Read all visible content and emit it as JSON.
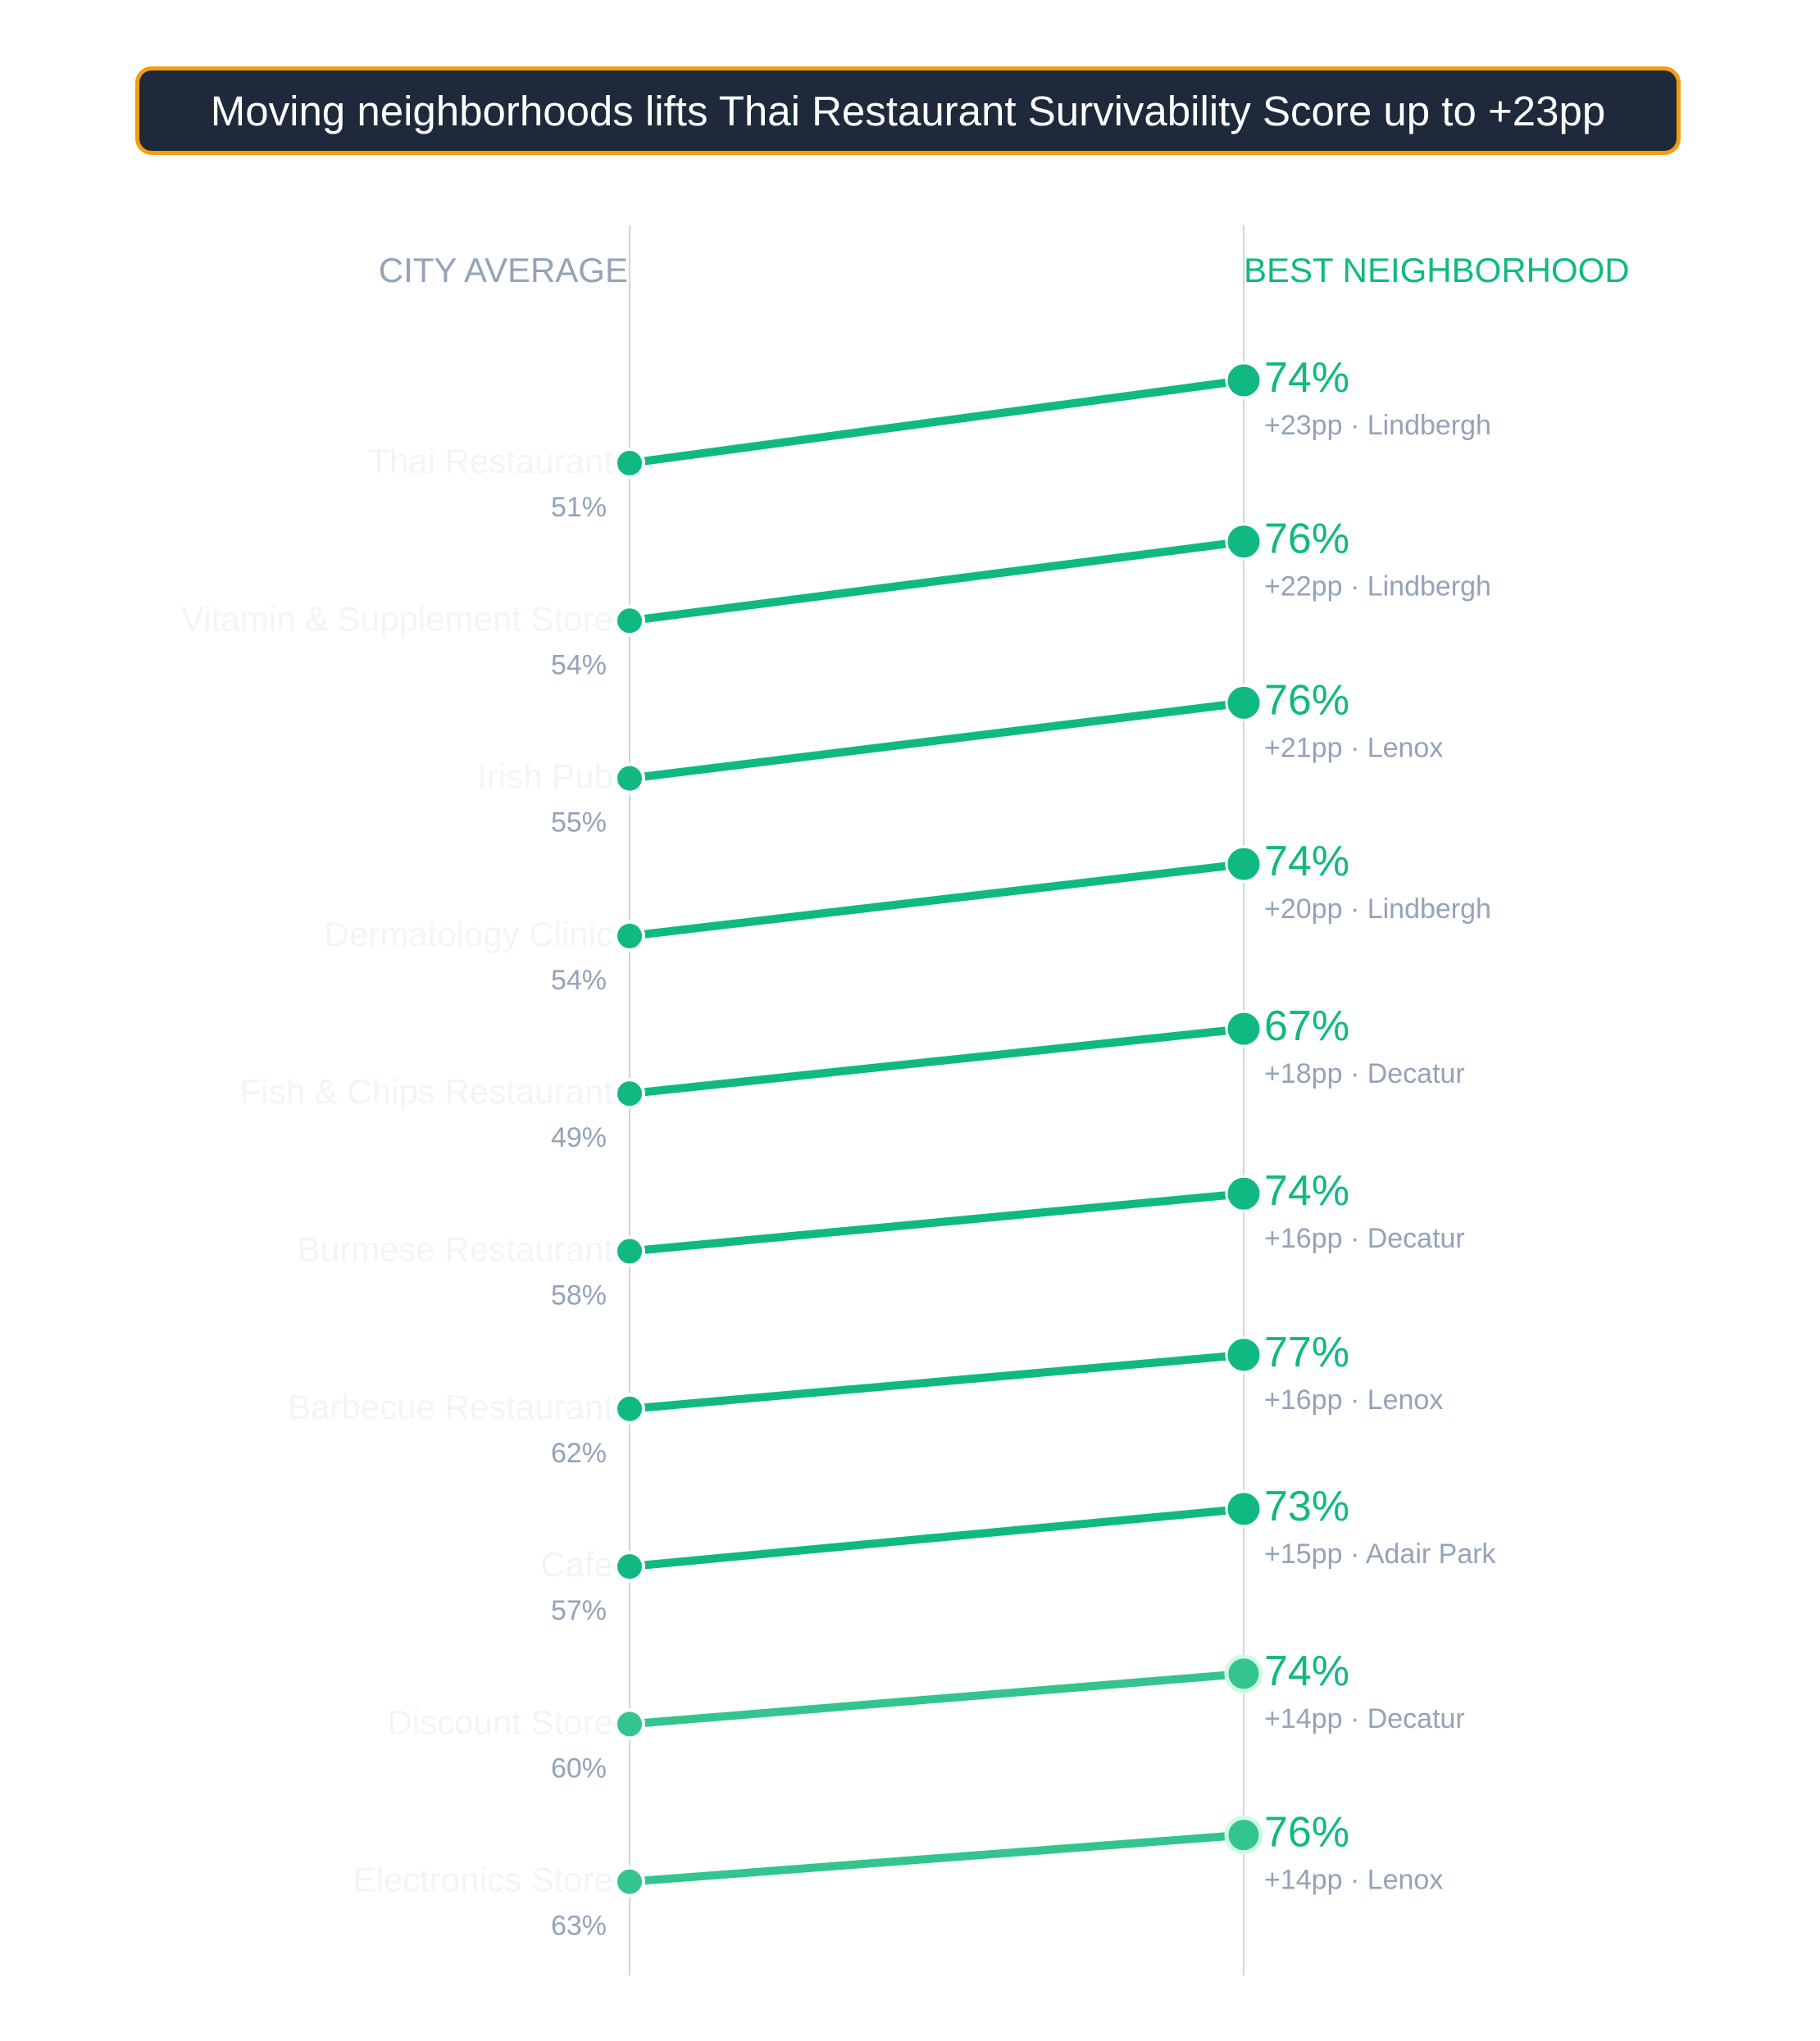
{
  "title": "Moving neighborhoods lifts Thai Restaurant Survivability Score up to +23pp",
  "colors": {
    "accent": "#10b981",
    "muted": "#94a3b8",
    "axis": "#cbd5e1",
    "title_bg": "#1e293b",
    "title_border": "#f59e0b",
    "faint_label": "#f1f5f9"
  },
  "chart_data": {
    "type": "slope",
    "left_axis_label": "CITY AVERAGE",
    "right_axis_label": "BEST NEIGHBORHOOD",
    "unit": "%",
    "rows": [
      {
        "category": "Thai Restaurant",
        "city_average": 51,
        "best": 74,
        "lift": "+23pp",
        "neighborhood": "Lindbergh"
      },
      {
        "category": "Vitamin & Supplement Store",
        "city_average": 54,
        "best": 76,
        "lift": "+22pp",
        "neighborhood": "Lindbergh"
      },
      {
        "category": "Irish Pub",
        "city_average": 55,
        "best": 76,
        "lift": "+21pp",
        "neighborhood": "Lenox"
      },
      {
        "category": "Dermatology Clinic",
        "city_average": 54,
        "best": 74,
        "lift": "+20pp",
        "neighborhood": "Lindbergh"
      },
      {
        "category": "Fish & Chips Restaurant",
        "city_average": 49,
        "best": 67,
        "lift": "+18pp",
        "neighborhood": "Decatur"
      },
      {
        "category": "Burmese Restaurant",
        "city_average": 58,
        "best": 74,
        "lift": "+16pp",
        "neighborhood": "Decatur"
      },
      {
        "category": "Barbecue Restaurant",
        "city_average": 62,
        "best": 77,
        "lift": "+16pp",
        "neighborhood": "Lenox"
      },
      {
        "category": "Cafe",
        "city_average": 57,
        "best": 73,
        "lift": "+15pp",
        "neighborhood": "Adair Park"
      },
      {
        "category": "Discount Store",
        "city_average": 60,
        "best": 74,
        "lift": "+14pp",
        "neighborhood": "Decatur"
      },
      {
        "category": "Electronics Store",
        "city_average": 63,
        "best": 76,
        "lift": "+14pp",
        "neighborhood": "Lenox"
      }
    ]
  }
}
